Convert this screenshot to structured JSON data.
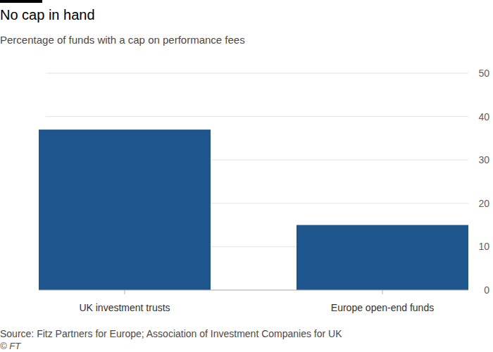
{
  "chart_data": {
    "type": "bar",
    "title": "No cap in hand",
    "subtitle": "Percentage of funds with a cap on performance fees",
    "categories": [
      "UK investment trusts",
      "Europe open-end funds"
    ],
    "values": [
      37,
      15
    ],
    "color": "#1f558d",
    "ylim": [
      0,
      50
    ],
    "yticks": [
      0,
      10,
      20,
      30,
      40,
      50
    ],
    "grid": true,
    "source": "Source: Fitz Partners for Europe; Association of Investment Companies for UK",
    "credit": "© FT"
  }
}
